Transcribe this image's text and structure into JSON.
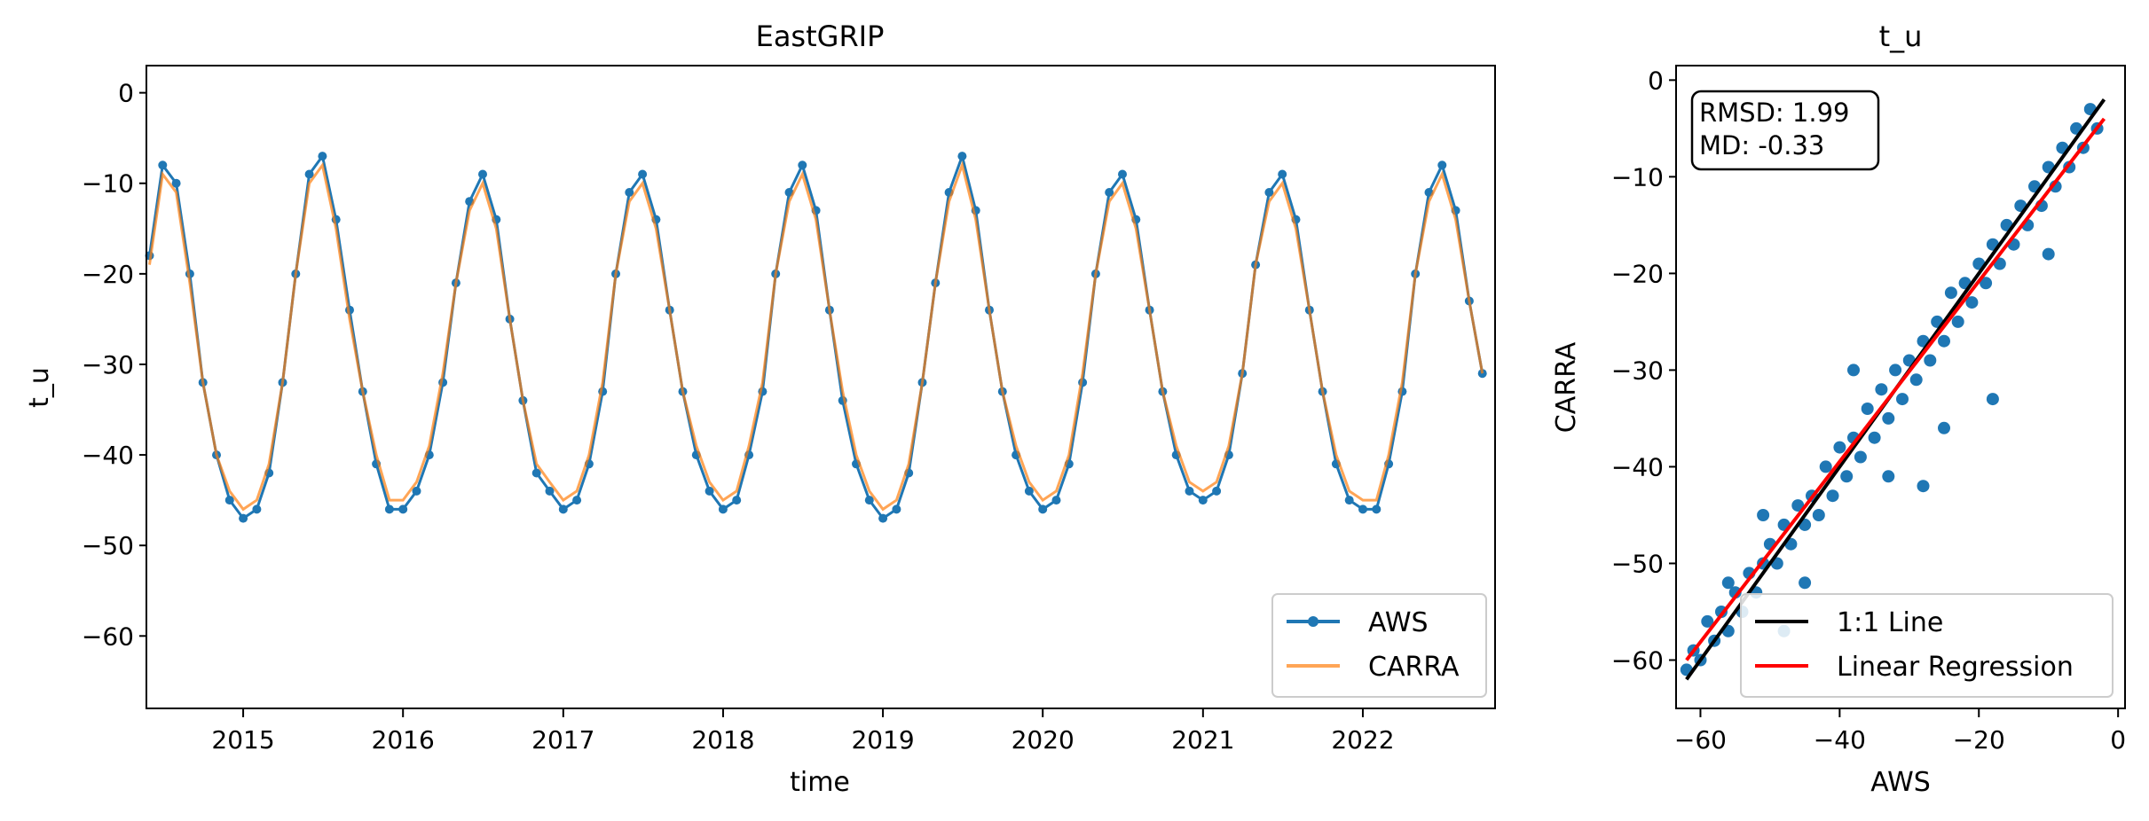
{
  "chart_data": [
    {
      "type": "line",
      "title": "EastGRIP",
      "xlabel": "time",
      "ylabel": "t_u",
      "xlim": [
        "2014-05-25",
        "2022-10-30"
      ],
      "ylim": [
        -68,
        3
      ],
      "x_ticks": [
        "2015",
        "2016",
        "2017",
        "2018",
        "2019",
        "2020",
        "2021",
        "2022"
      ],
      "y_ticks": [
        0,
        -10,
        -20,
        -30,
        -40,
        -50,
        -60
      ],
      "legend": {
        "position": "lower-right",
        "entries": [
          "AWS",
          "CARRA"
        ]
      },
      "series": [
        {
          "name": "AWS",
          "color": "#1f77b4",
          "marker": "circle",
          "x": [
            "2014-06-01",
            "2014-07-01",
            "2014-08-01",
            "2014-09-01",
            "2014-10-01",
            "2014-11-01",
            "2014-12-01",
            "2015-01-01",
            "2015-02-01",
            "2015-03-01",
            "2015-04-01",
            "2015-05-01",
            "2015-06-01",
            "2015-07-01",
            "2015-08-01",
            "2015-09-01",
            "2015-10-01",
            "2015-11-01",
            "2015-12-01",
            "2016-01-01",
            "2016-02-01",
            "2016-03-01",
            "2016-04-01",
            "2016-05-01",
            "2016-06-01",
            "2016-07-01",
            "2016-08-01",
            "2016-09-01",
            "2016-10-01",
            "2016-11-01",
            "2016-12-01",
            "2017-01-01",
            "2017-02-01",
            "2017-03-01",
            "2017-04-01",
            "2017-05-01",
            "2017-06-01",
            "2017-07-01",
            "2017-08-01",
            "2017-09-01",
            "2017-10-01",
            "2017-11-01",
            "2017-12-01",
            "2018-01-01",
            "2018-02-01",
            "2018-03-01",
            "2018-04-01",
            "2018-05-01",
            "2018-06-01",
            "2018-07-01",
            "2018-08-01",
            "2018-09-01",
            "2018-10-01",
            "2018-11-01",
            "2018-12-01",
            "2019-01-01",
            "2019-02-01",
            "2019-03-01",
            "2019-04-01",
            "2019-05-01",
            "2019-06-01",
            "2019-07-01",
            "2019-08-01",
            "2019-09-01",
            "2019-10-01",
            "2019-11-01",
            "2019-12-01",
            "2020-01-01",
            "2020-02-01",
            "2020-03-01",
            "2020-04-01",
            "2020-05-01",
            "2020-06-01",
            "2020-07-01",
            "2020-08-01",
            "2020-09-01",
            "2020-10-01",
            "2020-11-01",
            "2020-12-01",
            "2021-01-01",
            "2021-02-01",
            "2021-03-01",
            "2021-04-01",
            "2021-05-01",
            "2021-06-01",
            "2021-07-01",
            "2021-08-01",
            "2021-09-01",
            "2021-10-01",
            "2021-11-01",
            "2021-12-01",
            "2022-01-01",
            "2022-02-01",
            "2022-03-01",
            "2022-04-01",
            "2022-05-01",
            "2022-06-01",
            "2022-07-01",
            "2022-08-01",
            "2022-09-01",
            "2022-10-01"
          ],
          "values": [
            -18,
            -8,
            -10,
            -20,
            -32,
            -40,
            -45,
            -47,
            -46,
            -42,
            -32,
            -20,
            -9,
            -7,
            -14,
            -24,
            -33,
            -41,
            -46,
            -46,
            -44,
            -40,
            -32,
            -21,
            -12,
            -9,
            -14,
            -25,
            -34,
            -42,
            -44,
            -46,
            -45,
            -41,
            -33,
            -20,
            -11,
            -9,
            -14,
            -24,
            -33,
            -40,
            -44,
            -46,
            -45,
            -40,
            -33,
            -20,
            -11,
            -8,
            -13,
            -24,
            -34,
            -41,
            -45,
            -47,
            -46,
            -42,
            -32,
            -21,
            -11,
            -7,
            -13,
            -24,
            -33,
            -40,
            -44,
            -46,
            -45,
            -41,
            -32,
            -20,
            -11,
            -9,
            -14,
            -24,
            -33,
            -40,
            -44,
            -45,
            -44,
            -40,
            -31,
            -19,
            -11,
            -9,
            -14,
            -24,
            -33,
            -41,
            -45,
            -46,
            -46,
            -41,
            -33,
            -20,
            -11,
            -8,
            -13,
            -23,
            -31
          ]
        },
        {
          "name": "CARRA",
          "color": "#ff7f0e",
          "x": [
            "2014-06-01",
            "2014-07-01",
            "2014-08-01",
            "2014-09-01",
            "2014-10-01",
            "2014-11-01",
            "2014-12-01",
            "2015-01-01",
            "2015-02-01",
            "2015-03-01",
            "2015-04-01",
            "2015-05-01",
            "2015-06-01",
            "2015-07-01",
            "2015-08-01",
            "2015-09-01",
            "2015-10-01",
            "2015-11-01",
            "2015-12-01",
            "2016-01-01",
            "2016-02-01",
            "2016-03-01",
            "2016-04-01",
            "2016-05-01",
            "2016-06-01",
            "2016-07-01",
            "2016-08-01",
            "2016-09-01",
            "2016-10-01",
            "2016-11-01",
            "2016-12-01",
            "2017-01-01",
            "2017-02-01",
            "2017-03-01",
            "2017-04-01",
            "2017-05-01",
            "2017-06-01",
            "2017-07-01",
            "2017-08-01",
            "2017-09-01",
            "2017-10-01",
            "2017-11-01",
            "2017-12-01",
            "2018-01-01",
            "2018-02-01",
            "2018-03-01",
            "2018-04-01",
            "2018-05-01",
            "2018-06-01",
            "2018-07-01",
            "2018-08-01",
            "2018-09-01",
            "2018-10-01",
            "2018-11-01",
            "2018-12-01",
            "2019-01-01",
            "2019-02-01",
            "2019-03-01",
            "2019-04-01",
            "2019-05-01",
            "2019-06-01",
            "2019-07-01",
            "2019-08-01",
            "2019-09-01",
            "2019-10-01",
            "2019-11-01",
            "2019-12-01",
            "2020-01-01",
            "2020-02-01",
            "2020-03-01",
            "2020-04-01",
            "2020-05-01",
            "2020-06-01",
            "2020-07-01",
            "2020-08-01",
            "2020-09-01",
            "2020-10-01",
            "2020-11-01",
            "2020-12-01",
            "2021-01-01",
            "2021-02-01",
            "2021-03-01",
            "2021-04-01",
            "2021-05-01",
            "2021-06-01",
            "2021-07-01",
            "2021-08-01",
            "2021-09-01",
            "2021-10-01",
            "2021-11-01",
            "2021-12-01",
            "2022-01-01",
            "2022-02-01",
            "2022-03-01",
            "2022-04-01",
            "2022-05-01",
            "2022-06-01",
            "2022-07-01",
            "2022-08-01",
            "2022-09-01",
            "2022-10-01"
          ],
          "values": [
            -19,
            -9,
            -11,
            -21,
            -32,
            -40,
            -44,
            -46,
            -45,
            -41,
            -32,
            -20,
            -10,
            -8,
            -15,
            -25,
            -33,
            -40,
            -45,
            -45,
            -43,
            -39,
            -31,
            -21,
            -13,
            -10,
            -15,
            -25,
            -34,
            -41,
            -43,
            -45,
            -44,
            -40,
            -32,
            -20,
            -12,
            -10,
            -15,
            -24,
            -33,
            -39,
            -43,
            -45,
            -44,
            -39,
            -32,
            -20,
            -12,
            -9,
            -14,
            -24,
            -33,
            -40,
            -44,
            -46,
            -45,
            -41,
            -32,
            -21,
            -12,
            -8,
            -14,
            -24,
            -33,
            -39,
            -43,
            -45,
            -44,
            -40,
            -31,
            -20,
            -12,
            -10,
            -15,
            -24,
            -33,
            -39,
            -43,
            -44,
            -43,
            -39,
            -31,
            -19,
            -12,
            -10,
            -15,
            -24,
            -33,
            -40,
            -44,
            -45,
            -45,
            -40,
            -32,
            -20,
            -12,
            -9,
            -14,
            -23,
            -31
          ]
        }
      ]
    },
    {
      "type": "scatter",
      "title": "t_u",
      "xlabel": "AWS",
      "ylabel": "CARRA",
      "xlim": [
        -63.5,
        1
      ],
      "ylim": [
        -65,
        1.5
      ],
      "x_ticks": [
        -60,
        -40,
        -20,
        0
      ],
      "y_ticks": [
        0,
        -10,
        -20,
        -30,
        -40,
        -50,
        -60
      ],
      "annotation": [
        "RMSD: 1.99",
        "MD: -0.33"
      ],
      "legend": {
        "position": "lower-right",
        "entries": [
          "1:1 Line",
          "Linear Regression"
        ]
      },
      "scatter_color": "#1f77b4",
      "points": [
        [
          -62,
          -61
        ],
        [
          -61,
          -59
        ],
        [
          -60,
          -60
        ],
        [
          -59,
          -56
        ],
        [
          -58,
          -58
        ],
        [
          -57,
          -55
        ],
        [
          -56,
          -57
        ],
        [
          -55,
          -53
        ],
        [
          -54,
          -55
        ],
        [
          -53,
          -51
        ],
        [
          -52,
          -53
        ],
        [
          -51,
          -50
        ],
        [
          -50,
          -48
        ],
        [
          -49,
          -50
        ],
        [
          -48,
          -46
        ],
        [
          -47,
          -48
        ],
        [
          -46,
          -44
        ],
        [
          -45,
          -46
        ],
        [
          -44,
          -43
        ],
        [
          -43,
          -45
        ],
        [
          -42,
          -40
        ],
        [
          -41,
          -43
        ],
        [
          -40,
          -38
        ],
        [
          -39,
          -41
        ],
        [
          -38,
          -37
        ],
        [
          -37,
          -39
        ],
        [
          -36,
          -34
        ],
        [
          -35,
          -37
        ],
        [
          -34,
          -32
        ],
        [
          -33,
          -35
        ],
        [
          -32,
          -30
        ],
        [
          -31,
          -33
        ],
        [
          -30,
          -29
        ],
        [
          -29,
          -31
        ],
        [
          -28,
          -27
        ],
        [
          -27,
          -29
        ],
        [
          -26,
          -25
        ],
        [
          -25,
          -27
        ],
        [
          -24,
          -22
        ],
        [
          -23,
          -25
        ],
        [
          -22,
          -21
        ],
        [
          -21,
          -23
        ],
        [
          -20,
          -19
        ],
        [
          -19,
          -21
        ],
        [
          -18,
          -17
        ],
        [
          -17,
          -19
        ],
        [
          -16,
          -15
        ],
        [
          -15,
          -17
        ],
        [
          -14,
          -13
        ],
        [
          -13,
          -15
        ],
        [
          -12,
          -11
        ],
        [
          -11,
          -13
        ],
        [
          -10,
          -9
        ],
        [
          -9,
          -11
        ],
        [
          -8,
          -7
        ],
        [
          -7,
          -9
        ],
        [
          -6,
          -5
        ],
        [
          -5,
          -7
        ],
        [
          -4,
          -3
        ],
        [
          -3,
          -5
        ],
        [
          -18,
          -33
        ],
        [
          -28,
          -42
        ],
        [
          -33,
          -41
        ],
        [
          -45,
          -52
        ],
        [
          -56,
          -52
        ],
        [
          -51,
          -45
        ],
        [
          -38,
          -30
        ],
        [
          -10,
          -18
        ],
        [
          -25,
          -36
        ],
        [
          -48,
          -57
        ]
      ],
      "lines": [
        {
          "name": "1:1 Line",
          "color": "#000000",
          "x": [
            -62,
            -2
          ],
          "y": [
            -62,
            -2
          ]
        },
        {
          "name": "Linear Regression",
          "color": "#ff0000",
          "x": [
            -62,
            -2
          ],
          "y": [
            -60,
            -4
          ]
        }
      ]
    }
  ]
}
